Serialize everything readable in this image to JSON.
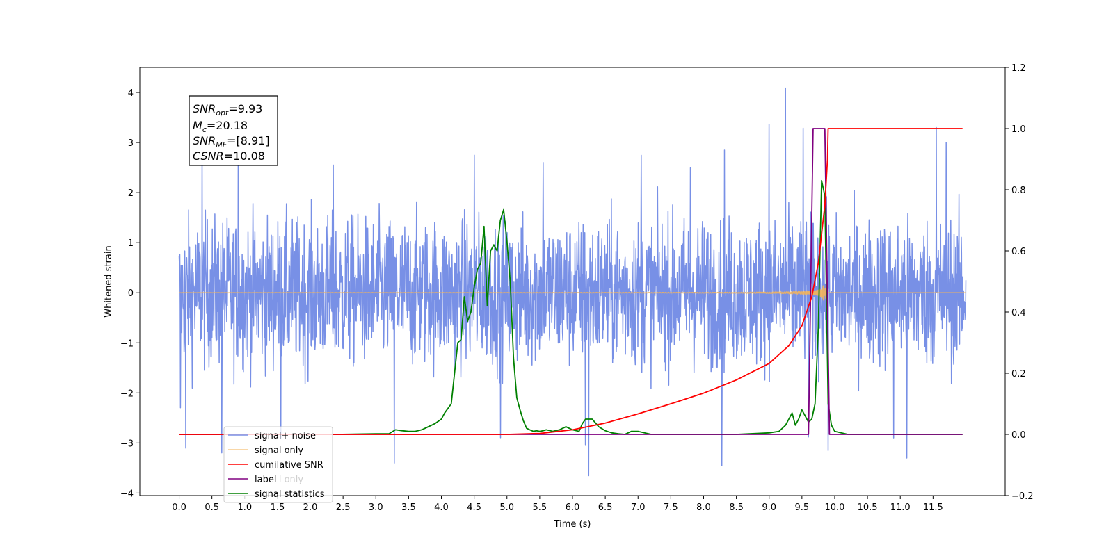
{
  "chart_data": {
    "type": "line",
    "xlabel": "Time (s)",
    "ylabel": "Whitened strain",
    "xlim": [
      -0.6,
      12.6
    ],
    "ylim": [
      -4.05,
      4.5
    ],
    "y2lim": [
      -0.2,
      1.2
    ],
    "x_ticks": [
      "0.0",
      "0.5",
      "1.0",
      "1.5",
      "2.0",
      "2.5",
      "3.0",
      "3.5",
      "4.0",
      "4.5",
      "5.0",
      "5.5",
      "6.0",
      "6.5",
      "7.0",
      "7.5",
      "8.0",
      "8.5",
      "9.0",
      "9.5",
      "10.0",
      "10.5",
      "11.0",
      "11.5"
    ],
    "y_ticks": [
      "−4",
      "−3",
      "−2",
      "−1",
      "0",
      "1",
      "2",
      "3",
      "4"
    ],
    "y2_ticks": [
      "−0.2",
      "0.0",
      "0.2",
      "0.4",
      "0.6",
      "0.8",
      "1.0",
      "1.2"
    ],
    "colors": {
      "noise": "#7890e6",
      "signal": "#f4b459",
      "csnr": "#ff0000",
      "label": "#800080",
      "stats": "#008000"
    },
    "annotation": {
      "snr_opt_base": "SNR",
      "snr_opt_sub": "opt",
      "snr_opt_value": "=9.93",
      "mc_base": "M",
      "mc_sub": "c",
      "mc_value": "=20.18",
      "snr_mf_base": "SNR",
      "snr_mf_sub": "MF",
      "snr_mf_value": "=[8.91]",
      "csnr_base": "CSNR",
      "csnr_value": "=10.08"
    },
    "legend": {
      "position": "lower-left",
      "entries": [
        "signal+ noise",
        "signal only",
        "cumilative SNR",
        "label",
        "signal statistics"
      ],
      "hidden_text": "signal only"
    },
    "series": [
      {
        "name": "signal+ noise",
        "axis": "left",
        "kind": "noise",
        "x_range": [
          0.0,
          12.0
        ],
        "envelope": [
          -1.7,
          1.75
        ],
        "spikes": [
          {
            "x": 0.02,
            "y": -2.3
          },
          {
            "x": 0.1,
            "y": -3.1
          },
          {
            "x": 0.35,
            "y": 2.75
          },
          {
            "x": 0.65,
            "y": -3.2
          },
          {
            "x": 0.9,
            "y": 2.6
          },
          {
            "x": 1.55,
            "y": -2.9
          },
          {
            "x": 2.35,
            "y": 2.55
          },
          {
            "x": 3.28,
            "y": -3.4
          },
          {
            "x": 4.5,
            "y": 2.75
          },
          {
            "x": 4.9,
            "y": -2.9
          },
          {
            "x": 5.55,
            "y": 2.6
          },
          {
            "x": 6.2,
            "y": -3.05
          },
          {
            "x": 6.25,
            "y": -3.65
          },
          {
            "x": 7.05,
            "y": 2.75
          },
          {
            "x": 7.8,
            "y": 2.5
          },
          {
            "x": 8.28,
            "y": -3.45
          },
          {
            "x": 8.32,
            "y": 2.85
          },
          {
            "x": 9.0,
            "y": 3.35
          },
          {
            "x": 9.25,
            "y": 4.1
          },
          {
            "x": 9.52,
            "y": 3.3
          },
          {
            "x": 9.6,
            "y": -2.9
          },
          {
            "x": 9.9,
            "y": -3.15
          },
          {
            "x": 10.9,
            "y": -2.9
          },
          {
            "x": 11.1,
            "y": -3.3
          },
          {
            "x": 11.55,
            "y": 3.3
          },
          {
            "x": 11.7,
            "y": 3.0
          }
        ]
      },
      {
        "name": "signal only",
        "axis": "left",
        "kind": "chirp",
        "x_range": [
          0.0,
          12.0
        ],
        "merger_x": 9.85,
        "peak_amplitude": 0.85
      },
      {
        "name": "cumilative SNR",
        "axis": "right",
        "x": [
          0.0,
          5.0,
          5.5,
          6.0,
          6.5,
          7.0,
          7.5,
          8.0,
          8.5,
          9.0,
          9.3,
          9.5,
          9.65,
          9.75,
          9.85,
          9.89,
          9.9,
          10.2,
          11.0,
          11.95
        ],
        "y": [
          0.0,
          0.0,
          0.003,
          0.015,
          0.037,
          0.067,
          0.1,
          0.135,
          0.178,
          0.232,
          0.29,
          0.355,
          0.45,
          0.56,
          0.75,
          0.9,
          1.0,
          1.0,
          1.0,
          1.0
        ]
      },
      {
        "name": "label",
        "axis": "right",
        "x": [
          0.0,
          9.6,
          9.67,
          9.85,
          9.92,
          11.95
        ],
        "y": [
          0.0,
          0.0,
          1.0,
          1.0,
          0.0,
          0.0
        ]
      },
      {
        "name": "signal statistics",
        "axis": "right",
        "x": [
          0.0,
          2.4,
          3.0,
          3.2,
          3.3,
          3.4,
          3.5,
          3.6,
          3.7,
          3.8,
          3.9,
          4.0,
          4.05,
          4.15,
          4.2,
          4.25,
          4.3,
          4.35,
          4.4,
          4.45,
          4.5,
          4.55,
          4.6,
          4.65,
          4.7,
          4.75,
          4.8,
          4.85,
          4.9,
          4.95,
          5.0,
          5.05,
          5.1,
          5.15,
          5.2,
          5.25,
          5.3,
          5.35,
          5.4,
          5.45,
          5.5,
          5.55,
          5.6,
          5.7,
          5.8,
          5.9,
          6.0,
          6.1,
          6.15,
          6.2,
          6.3,
          6.4,
          6.5,
          6.6,
          6.7,
          6.8,
          6.9,
          7.0,
          7.2,
          7.5,
          8.0,
          8.5,
          9.0,
          9.15,
          9.25,
          9.3,
          9.35,
          9.4,
          9.45,
          9.5,
          9.55,
          9.6,
          9.65,
          9.7,
          9.75,
          9.8,
          9.85,
          9.9,
          9.95,
          10.0,
          10.2,
          10.5,
          11.95
        ],
        "y": [
          0.0,
          0.0,
          0.002,
          0.002,
          0.015,
          0.012,
          0.01,
          0.01,
          0.015,
          0.025,
          0.035,
          0.05,
          0.07,
          0.1,
          0.2,
          0.3,
          0.31,
          0.45,
          0.37,
          0.4,
          0.48,
          0.54,
          0.56,
          0.68,
          0.42,
          0.6,
          0.62,
          0.6,
          0.7,
          0.735,
          0.63,
          0.5,
          0.25,
          0.12,
          0.08,
          0.045,
          0.02,
          0.015,
          0.01,
          0.012,
          0.01,
          0.012,
          0.015,
          0.01,
          0.015,
          0.025,
          0.015,
          0.01,
          0.035,
          0.05,
          0.05,
          0.025,
          0.012,
          0.005,
          0.002,
          0.0,
          0.01,
          0.01,
          0.0,
          0.0,
          0.0,
          0.0,
          0.005,
          0.01,
          0.03,
          0.05,
          0.07,
          0.03,
          0.05,
          0.08,
          0.06,
          0.04,
          0.05,
          0.1,
          0.35,
          0.83,
          0.78,
          0.1,
          0.03,
          0.01,
          0.0,
          0.0,
          0.0
        ]
      }
    ]
  }
}
